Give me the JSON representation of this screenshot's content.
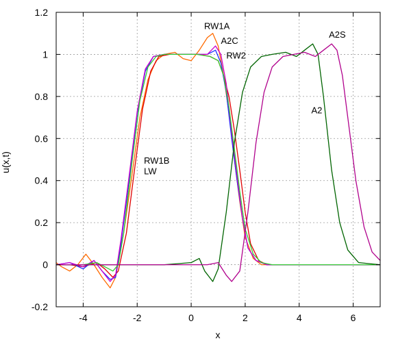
{
  "chart_data": {
    "type": "line",
    "xlabel": "x",
    "ylabel": "u(x,t)",
    "xlim": [
      -5,
      7
    ],
    "ylim": [
      -0.2,
      1.2
    ],
    "x_ticks": [
      -4,
      -2,
      0,
      2,
      4,
      6
    ],
    "y_ticks": [
      -0.2,
      0,
      0.2,
      0.4,
      0.6,
      0.8,
      1,
      1.2
    ],
    "x_tick_labels": [
      "-4",
      "-2",
      "0",
      "2",
      "4",
      "6"
    ],
    "y_tick_labels": [
      "-0.2",
      "0",
      "0.2",
      "0.4",
      "0.6",
      "0.8",
      "1",
      "1.2"
    ],
    "grid": true,
    "legend": "none",
    "series": [
      {
        "color": "#ff6a00",
        "points": [
          [
            -5,
            0.01
          ],
          [
            -4.8,
            -0.01
          ],
          [
            -4.5,
            -0.03
          ],
          [
            -4.2,
            0.0
          ],
          [
            -3.9,
            0.05
          ],
          [
            -3.6,
            0.0
          ],
          [
            -3.3,
            -0.06
          ],
          [
            -3.0,
            -0.11
          ],
          [
            -2.8,
            -0.06
          ],
          [
            -2.5,
            0.15
          ],
          [
            -2.2,
            0.42
          ],
          [
            -1.9,
            0.7
          ],
          [
            -1.6,
            0.88
          ],
          [
            -1.3,
            0.97
          ],
          [
            -1.0,
            1.0
          ],
          [
            -0.6,
            1.01
          ],
          [
            -0.3,
            0.98
          ],
          [
            0.0,
            0.97
          ],
          [
            0.3,
            1.02
          ],
          [
            0.6,
            1.08
          ],
          [
            0.8,
            1.1
          ],
          [
            1.0,
            1.04
          ],
          [
            1.2,
            0.9
          ],
          [
            1.4,
            0.72
          ],
          [
            1.6,
            0.5
          ],
          [
            1.8,
            0.3
          ],
          [
            2.0,
            0.13
          ],
          [
            2.3,
            0.03
          ],
          [
            2.6,
            0.0
          ],
          [
            3.0,
            0.0
          ],
          [
            7,
            0.0
          ]
        ]
      },
      {
        "color": "#e00000",
        "points": [
          [
            -5,
            0.0
          ],
          [
            -4.5,
            0.0
          ],
          [
            -4.0,
            -0.01
          ],
          [
            -3.5,
            0.01
          ],
          [
            -3.2,
            -0.02
          ],
          [
            -2.9,
            -0.06
          ],
          [
            -2.7,
            -0.03
          ],
          [
            -2.4,
            0.15
          ],
          [
            -2.1,
            0.45
          ],
          [
            -1.8,
            0.74
          ],
          [
            -1.5,
            0.92
          ],
          [
            -1.2,
            0.99
          ],
          [
            -0.8,
            1.0
          ],
          [
            -0.2,
            1.0
          ],
          [
            0.3,
            1.0
          ],
          [
            0.7,
            0.99
          ],
          [
            1.0,
            0.97
          ],
          [
            1.2,
            0.9
          ],
          [
            1.4,
            0.8
          ],
          [
            1.6,
            0.64
          ],
          [
            1.8,
            0.45
          ],
          [
            2.0,
            0.25
          ],
          [
            2.2,
            0.1
          ],
          [
            2.5,
            0.02
          ],
          [
            2.8,
            0.0
          ],
          [
            7,
            0.0
          ]
        ]
      },
      {
        "color": "#2030ff",
        "points": [
          [
            -5,
            0.0
          ],
          [
            -4.5,
            0.01
          ],
          [
            -4.0,
            -0.02
          ],
          [
            -3.6,
            0.02
          ],
          [
            -3.3,
            -0.03
          ],
          [
            -3.0,
            -0.07
          ],
          [
            -2.8,
            -0.06
          ],
          [
            -2.6,
            0.1
          ],
          [
            -2.3,
            0.4
          ],
          [
            -2.0,
            0.72
          ],
          [
            -1.7,
            0.92
          ],
          [
            -1.4,
            0.99
          ],
          [
            -1.0,
            1.0
          ],
          [
            -0.4,
            1.0
          ],
          [
            0.2,
            1.0
          ],
          [
            0.6,
            1.0
          ],
          [
            0.9,
            1.02
          ],
          [
            1.1,
            0.96
          ],
          [
            1.3,
            0.82
          ],
          [
            1.5,
            0.6
          ],
          [
            1.7,
            0.4
          ],
          [
            1.9,
            0.22
          ],
          [
            2.1,
            0.08
          ],
          [
            2.4,
            0.02
          ],
          [
            2.8,
            0.0
          ],
          [
            7,
            0.0
          ]
        ]
      },
      {
        "color": "#cc00cc",
        "points": [
          [
            -5,
            0.0
          ],
          [
            -4.5,
            0.01
          ],
          [
            -4.0,
            -0.01
          ],
          [
            -3.6,
            0.02
          ],
          [
            -3.3,
            -0.03
          ],
          [
            -3.0,
            -0.08
          ],
          [
            -2.8,
            -0.05
          ],
          [
            -2.6,
            0.12
          ],
          [
            -2.3,
            0.42
          ],
          [
            -2.0,
            0.73
          ],
          [
            -1.7,
            0.93
          ],
          [
            -1.4,
            0.99
          ],
          [
            -1.0,
            1.0
          ],
          [
            -0.4,
            1.0
          ],
          [
            0.2,
            1.0
          ],
          [
            0.6,
            1.0
          ],
          [
            0.9,
            1.04
          ],
          [
            1.1,
            1.0
          ],
          [
            1.3,
            0.86
          ],
          [
            1.5,
            0.63
          ],
          [
            1.7,
            0.42
          ],
          [
            1.9,
            0.22
          ],
          [
            2.1,
            0.08
          ],
          [
            2.4,
            0.02
          ],
          [
            2.8,
            0.0
          ],
          [
            7,
            0.0
          ]
        ]
      },
      {
        "color": "#33cc33",
        "points": [
          [
            -5,
            0.0
          ],
          [
            -4.0,
            0.0
          ],
          [
            -3.5,
            0.01
          ],
          [
            -3.2,
            -0.01
          ],
          [
            -2.9,
            -0.03
          ],
          [
            -2.7,
            0.0
          ],
          [
            -2.5,
            0.15
          ],
          [
            -2.2,
            0.48
          ],
          [
            -1.9,
            0.78
          ],
          [
            -1.6,
            0.94
          ],
          [
            -1.3,
            0.99
          ],
          [
            -1.0,
            1.0
          ],
          [
            -0.4,
            1.0
          ],
          [
            0.2,
            1.0
          ],
          [
            0.7,
            0.99
          ],
          [
            1.0,
            0.97
          ],
          [
            1.2,
            0.9
          ],
          [
            1.4,
            0.75
          ],
          [
            1.6,
            0.55
          ],
          [
            1.8,
            0.35
          ],
          [
            2.0,
            0.17
          ],
          [
            2.3,
            0.05
          ],
          [
            2.6,
            0.01
          ],
          [
            3.0,
            0.0
          ],
          [
            7,
            0.0
          ]
        ]
      },
      {
        "color": "#006400",
        "points": [
          [
            -5,
            0.0
          ],
          [
            -3.5,
            0.0
          ],
          [
            -2.5,
            0.0
          ],
          [
            -1.0,
            0.0
          ],
          [
            0.0,
            0.01
          ],
          [
            0.3,
            0.03
          ],
          [
            0.5,
            -0.03
          ],
          [
            0.8,
            -0.08
          ],
          [
            1.0,
            -0.02
          ],
          [
            1.3,
            0.25
          ],
          [
            1.6,
            0.58
          ],
          [
            1.9,
            0.82
          ],
          [
            2.2,
            0.94
          ],
          [
            2.6,
            0.99
          ],
          [
            3.0,
            1.0
          ],
          [
            3.5,
            1.01
          ],
          [
            3.9,
            0.99
          ],
          [
            4.2,
            1.02
          ],
          [
            4.5,
            1.05
          ],
          [
            4.7,
            1.0
          ],
          [
            4.9,
            0.8
          ],
          [
            5.2,
            0.45
          ],
          [
            5.5,
            0.2
          ],
          [
            5.8,
            0.07
          ],
          [
            6.2,
            0.01
          ],
          [
            7,
            0.0
          ]
        ]
      },
      {
        "color": "#b0008c",
        "points": [
          [
            -5,
            0.0
          ],
          [
            -3.0,
            0.0
          ],
          [
            -1.5,
            0.0
          ],
          [
            -0.5,
            0.0
          ],
          [
            0.0,
            0.0
          ],
          [
            0.6,
            0.0
          ],
          [
            1.0,
            0.01
          ],
          [
            1.3,
            -0.05
          ],
          [
            1.5,
            -0.08
          ],
          [
            1.8,
            -0.03
          ],
          [
            2.1,
            0.25
          ],
          [
            2.4,
            0.58
          ],
          [
            2.7,
            0.82
          ],
          [
            3.0,
            0.94
          ],
          [
            3.4,
            0.99
          ],
          [
            3.8,
            1.0
          ],
          [
            4.2,
            1.01
          ],
          [
            4.6,
            0.99
          ],
          [
            4.9,
            1.02
          ],
          [
            5.2,
            1.05
          ],
          [
            5.4,
            1.02
          ],
          [
            5.6,
            0.9
          ],
          [
            5.8,
            0.7
          ],
          [
            6.1,
            0.4
          ],
          [
            6.4,
            0.18
          ],
          [
            6.7,
            0.06
          ],
          [
            7,
            0.02
          ]
        ]
      }
    ],
    "annotations": [
      {
        "text": "RW1A",
        "x": 0.48,
        "y": 1.12
      },
      {
        "text": "A2C",
        "x": 1.1,
        "y": 1.05
      },
      {
        "text": "RW2",
        "x": 1.3,
        "y": 0.98
      },
      {
        "text": "A2S",
        "x": 5.1,
        "y": 1.08
      },
      {
        "text": "A2",
        "x": 4.45,
        "y": 0.72
      },
      {
        "text": "RW1B",
        "x": -1.75,
        "y": 0.48
      },
      {
        "text": "LW",
        "x": -1.75,
        "y": 0.43
      }
    ]
  }
}
